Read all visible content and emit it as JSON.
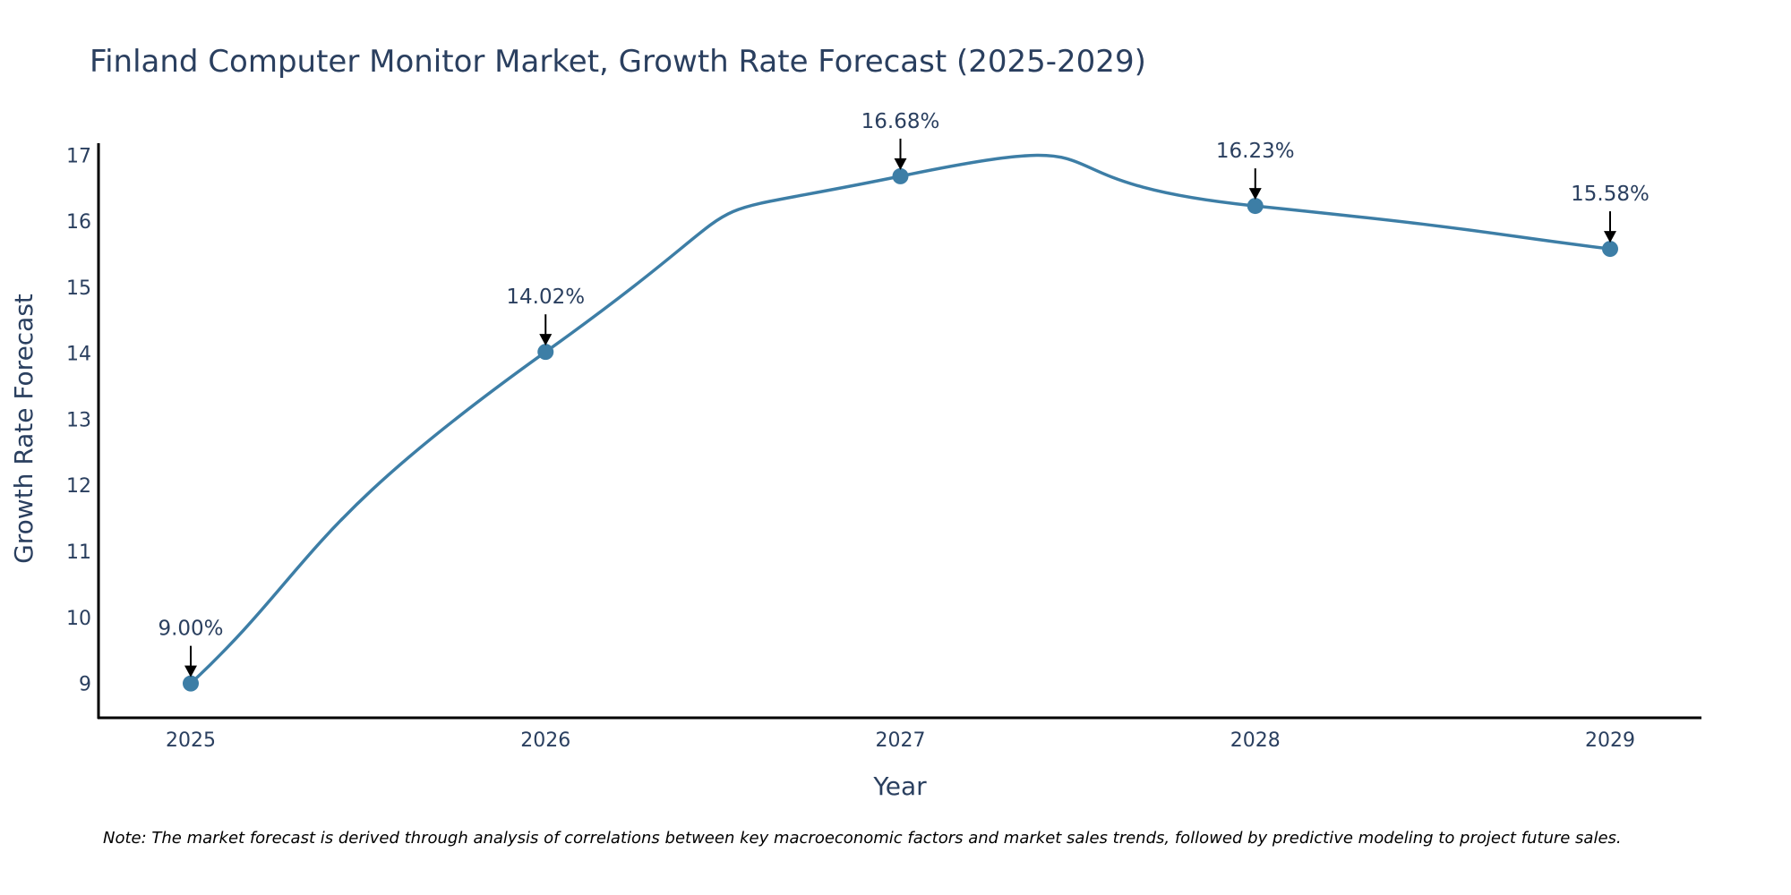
{
  "chart_data": {
    "type": "line",
    "title": "Finland Computer Monitor Market, Growth Rate Forecast (2025-2029)",
    "xlabel": "Year",
    "ylabel": "Growth Rate Forecast",
    "categories": [
      "2025",
      "2026",
      "2027",
      "2028",
      "2029"
    ],
    "values": [
      9.0,
      14.02,
      16.68,
      16.23,
      15.58
    ],
    "data_labels": [
      "9.00%",
      "14.02%",
      "16.68%",
      "16.23%",
      "15.58%"
    ],
    "y_ticks": [
      "9",
      "10",
      "11",
      "12",
      "13",
      "14",
      "15",
      "16",
      "17"
    ],
    "ylim": [
      8.48,
      17.18
    ],
    "grid": false,
    "line_shape": "spline",
    "colors": {
      "line": "#3d7ea6",
      "marker": "#3d7ea6",
      "text": "#2a3f5f",
      "axis": "#000000",
      "arrow": "#000000"
    },
    "note": "Note: The market forecast is derived through analysis of correlations between key macroeconomic factors and market sales trends, followed by predictive modeling to project future sales."
  }
}
